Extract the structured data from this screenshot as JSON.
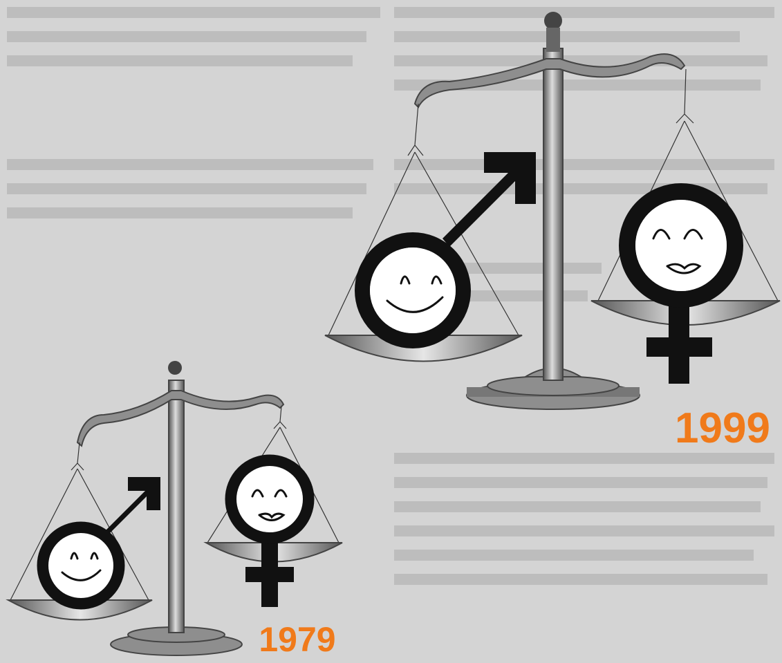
{
  "years": {
    "first": "1979",
    "second": "1999"
  }
}
